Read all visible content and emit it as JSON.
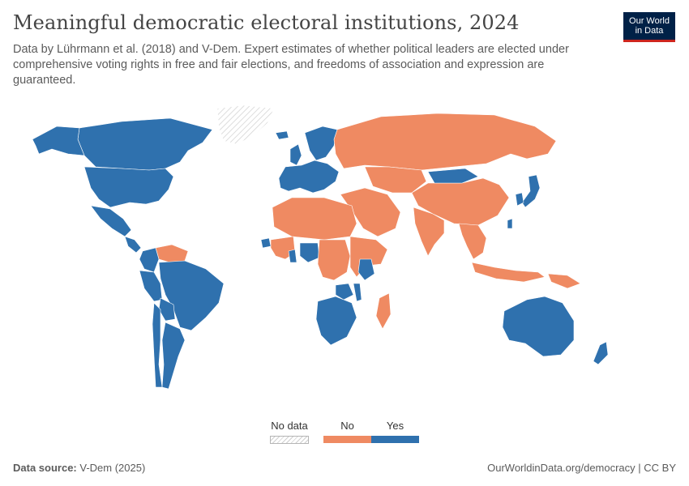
{
  "header": {
    "title": "Meaningful democratic electoral institutions, 2024",
    "subtitle": "Data by Lührmann et al. (2018) and V-Dem. Expert estimates of whether political leaders are elected under comprehensive voting rights in free and fair elections, and freedoms of association and expression are guaranteed.",
    "logo_line1": "Our World",
    "logo_line2": "in Data"
  },
  "legend": {
    "no_data_label": "No data",
    "no_label": "No",
    "yes_label": "Yes"
  },
  "colors": {
    "yes": "#2f71ae",
    "no": "#ef8a62",
    "no_data": "#d9d9d9",
    "brand": "#002147",
    "brand_accent": "#ce261e"
  },
  "footer": {
    "source_label": "Data source:",
    "source_value": "V-Dem (2025)",
    "credit": "OurWorldinData.org/democracy | CC BY"
  },
  "map_data": {
    "year": 2024,
    "categories": [
      "No data",
      "No",
      "Yes"
    ],
    "regions": [
      {
        "name": "Greenland",
        "value": "No data"
      },
      {
        "name": "Canada",
        "value": "Yes"
      },
      {
        "name": "Alaska",
        "value": "Yes"
      },
      {
        "name": "United States",
        "value": "Yes"
      },
      {
        "name": "Mexico",
        "value": "Yes"
      },
      {
        "name": "Central America",
        "value": "Yes"
      },
      {
        "name": "Venezuela",
        "value": "No"
      },
      {
        "name": "Colombia",
        "value": "Yes"
      },
      {
        "name": "Brazil",
        "value": "Yes"
      },
      {
        "name": "Peru",
        "value": "Yes"
      },
      {
        "name": "Bolivia",
        "value": "Yes"
      },
      {
        "name": "Argentina",
        "value": "Yes"
      },
      {
        "name": "Chile",
        "value": "Yes"
      },
      {
        "name": "Western Europe",
        "value": "Yes"
      },
      {
        "name": "Scandinavia",
        "value": "Yes"
      },
      {
        "name": "Iceland",
        "value": "Yes"
      },
      {
        "name": "United Kingdom",
        "value": "Yes"
      },
      {
        "name": "Russia",
        "value": "No"
      },
      {
        "name": "Middle East",
        "value": "No"
      },
      {
        "name": "Central Asia",
        "value": "No"
      },
      {
        "name": "India",
        "value": "No"
      },
      {
        "name": "China",
        "value": "No"
      },
      {
        "name": "Mongolia",
        "value": "Yes"
      },
      {
        "name": "Japan",
        "value": "Yes"
      },
      {
        "name": "South Korea",
        "value": "Yes"
      },
      {
        "name": "Taiwan",
        "value": "Yes"
      },
      {
        "name": "Southeast Asia",
        "value": "No"
      },
      {
        "name": "Indonesia",
        "value": "No"
      },
      {
        "name": "Papua New Guinea",
        "value": "No"
      },
      {
        "name": "Australia",
        "value": "Yes"
      },
      {
        "name": "New Zealand",
        "value": "Yes"
      },
      {
        "name": "North Africa",
        "value": "No"
      },
      {
        "name": "West Africa",
        "value": "No"
      },
      {
        "name": "Senegal",
        "value": "Yes"
      },
      {
        "name": "Ghana",
        "value": "Yes"
      },
      {
        "name": "Nigeria",
        "value": "Yes"
      },
      {
        "name": "Central Africa",
        "value": "No"
      },
      {
        "name": "East Africa",
        "value": "No"
      },
      {
        "name": "Kenya",
        "value": "Yes"
      },
      {
        "name": "Zambia",
        "value": "Yes"
      },
      {
        "name": "Malawi",
        "value": "Yes"
      },
      {
        "name": "Southern Africa",
        "value": "Yes"
      },
      {
        "name": "Madagascar",
        "value": "No"
      }
    ]
  }
}
